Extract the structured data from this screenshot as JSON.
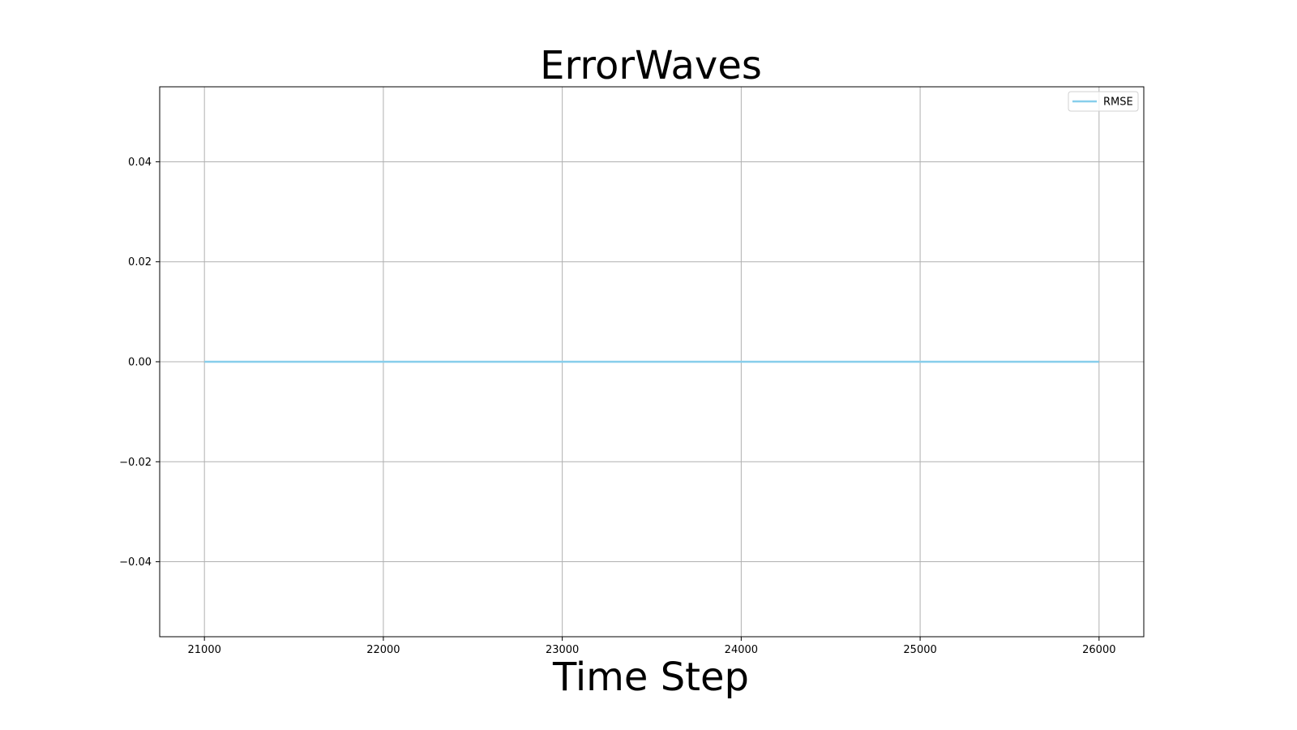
{
  "chart_data": {
    "type": "line",
    "title": "ErrorWaves",
    "xlabel": "Time Step",
    "ylabel": "",
    "xlim": [
      20750,
      26250
    ],
    "ylim": [
      -0.055,
      0.055
    ],
    "xticks": [
      21000,
      22000,
      23000,
      24000,
      25000,
      26000
    ],
    "xtick_labels": [
      "21000",
      "22000",
      "23000",
      "24000",
      "25000",
      "26000"
    ],
    "yticks": [
      0.04,
      0.02,
      0.0,
      -0.02,
      -0.04
    ],
    "ytick_labels": [
      "0.04",
      "0.02",
      "0.00",
      "−0.02",
      "−0.04"
    ],
    "grid": true,
    "legend_position": "top-right",
    "series": [
      {
        "name": "RMSE",
        "color": "#87ceeb",
        "x": [
          21000,
          26000
        ],
        "y": [
          0.0,
          0.0
        ]
      }
    ]
  }
}
